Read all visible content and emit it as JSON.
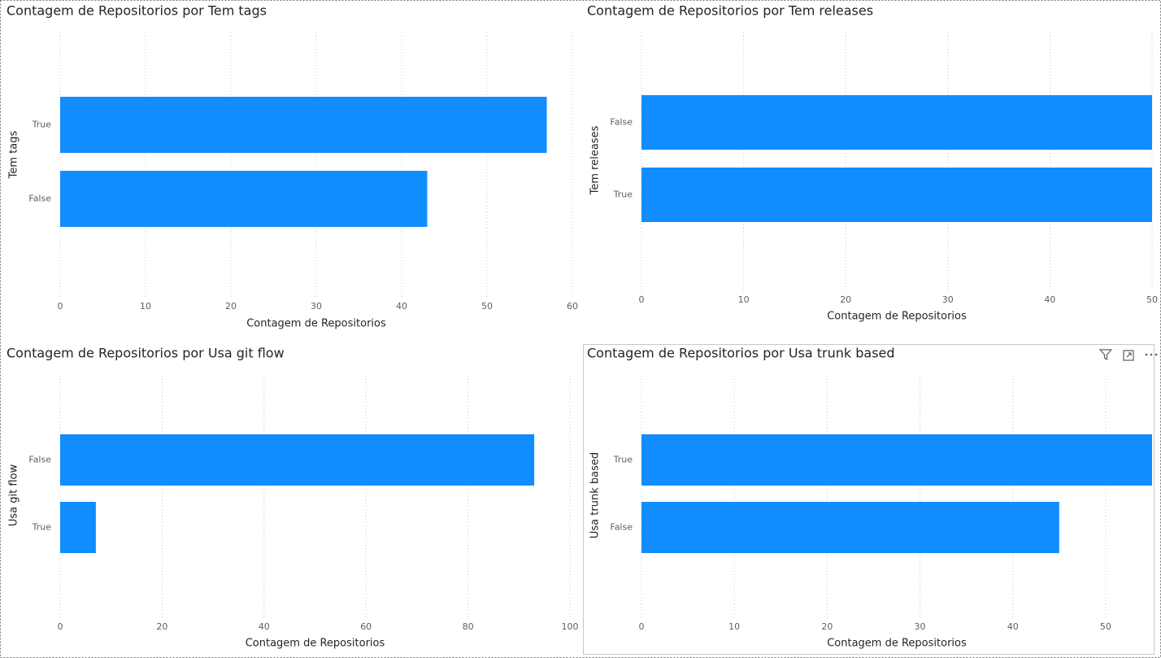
{
  "chart_data": [
    {
      "type": "bar",
      "title": "Contagem de Repositorios por Tem tags",
      "x_label": "Contagem de Repositorios",
      "y_label": "Tem tags",
      "categories": [
        "True",
        "False"
      ],
      "values": [
        57,
        43
      ],
      "color": "#118dff",
      "xlim": [
        0,
        60
      ],
      "xticks": [
        0,
        10,
        20,
        30,
        40,
        50,
        60
      ],
      "grid": true
    },
    {
      "type": "bar",
      "title": "Contagem de Repositorios por Tem releases",
      "x_label": "Contagem de Repositorios",
      "y_label": "Tem releases",
      "categories": [
        "False",
        "True"
      ],
      "values": [
        50,
        50
      ],
      "color": "#118dff",
      "xlim": [
        0,
        50
      ],
      "xticks": [
        0,
        10,
        20,
        30,
        40,
        50
      ],
      "grid": true
    },
    {
      "type": "bar",
      "title": "Contagem de Repositorios por Usa git flow",
      "x_label": "Contagem de Repositorios",
      "y_label": "Usa git flow",
      "categories": [
        "False",
        "True"
      ],
      "values": [
        93,
        7
      ],
      "color": "#118dff",
      "xlim": [
        0,
        100
      ],
      "xticks": [
        0,
        20,
        40,
        60,
        80,
        100
      ],
      "grid": true
    },
    {
      "type": "bar",
      "title": "Contagem de Repositorios por Usa trunk based",
      "x_label": "Contagem de Repositorios",
      "y_label": "Usa trunk based",
      "categories": [
        "True",
        "False"
      ],
      "values": [
        55,
        45
      ],
      "color": "#118dff",
      "xlim": [
        0,
        55
      ],
      "xticks": [
        0,
        10,
        20,
        30,
        40,
        50
      ],
      "grid": true
    }
  ]
}
